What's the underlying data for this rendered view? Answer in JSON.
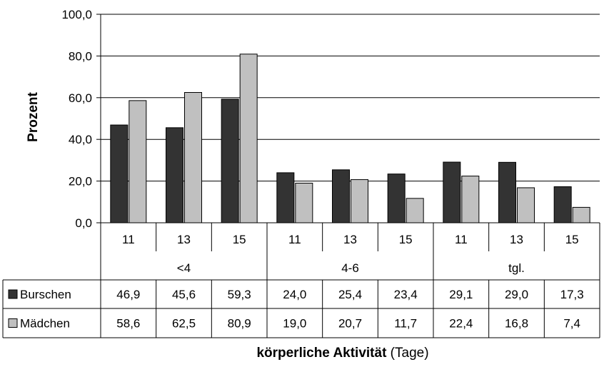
{
  "chart_data": {
    "type": "bar",
    "ylabel": "Prozent",
    "xlabel_bold": "körperliche Aktivität",
    "xlabel_normal": " (Tage)",
    "ylim": [
      0,
      100
    ],
    "yticks": [
      "0,0",
      "20,0",
      "40,0",
      "60,0",
      "80,0",
      "100,0"
    ],
    "ytick_values": [
      0,
      20,
      40,
      60,
      80,
      100
    ],
    "categories": [
      "11",
      "13",
      "15",
      "11",
      "13",
      "15",
      "11",
      "13",
      "15"
    ],
    "groups": [
      "<4",
      "4-6",
      "tgl."
    ],
    "series": [
      {
        "name": "Burschen",
        "color": "#333333",
        "values": [
          46.9,
          45.6,
          59.3,
          24.0,
          25.4,
          23.4,
          29.1,
          29.0,
          17.3
        ],
        "labels": [
          "46,9",
          "45,6",
          "59,3",
          "24,0",
          "25,4",
          "23,4",
          "29,1",
          "29,0",
          "17,3"
        ]
      },
      {
        "name": "Mädchen",
        "color": "#c0c0c0",
        "values": [
          58.6,
          62.5,
          80.9,
          19.0,
          20.7,
          11.7,
          22.4,
          16.8,
          7.4
        ],
        "labels": [
          "58,6",
          "62,5",
          "80,9",
          "19,0",
          "20,7",
          "11,7",
          "22,4",
          "16,8",
          "7,4"
        ]
      }
    ],
    "grid": true,
    "legend": "data-table"
  }
}
